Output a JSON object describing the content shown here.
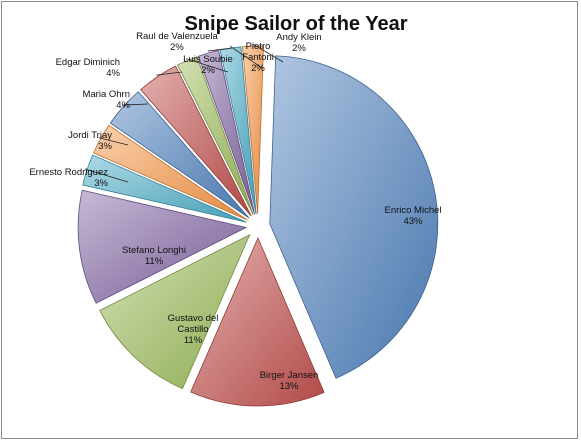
{
  "chart_data": {
    "type": "pie",
    "title": "Snipe Sailor of the Year",
    "slices": [
      {
        "label": "Enrico Michel",
        "value": 43,
        "pct_label": "43%",
        "color": "#4f81bd"
      },
      {
        "label": "Birger Jansen",
        "value": 13,
        "pct_label": "13%",
        "color": "#c0504d"
      },
      {
        "label": "Gustavo del Castillo",
        "value": 11,
        "pct_label": "11%",
        "color": "#9bbb59"
      },
      {
        "label": "Stefano Longhi",
        "value": 11,
        "pct_label": "11%",
        "color": "#8064a2"
      },
      {
        "label": "Ernesto Rodriguez",
        "value": 3,
        "pct_label": "3%",
        "color": "#4bacc6"
      },
      {
        "label": "Jordi Triay",
        "value": 3,
        "pct_label": "3%",
        "color": "#f79646"
      },
      {
        "label": "Maria Ohrn",
        "value": 4,
        "pct_label": "4%",
        "color": "#4f81bd"
      },
      {
        "label": "Edgar Diminich",
        "value": 4,
        "pct_label": "4%",
        "color": "#c0504d"
      },
      {
        "label": "Luis Soubie",
        "value": 2,
        "pct_label": "2%",
        "color": "#9bbb59"
      },
      {
        "label": "Raul de Valenzuela",
        "value": 2,
        "pct_label": "2%",
        "color": "#8064a2"
      },
      {
        "label": "Pietro Fantoni",
        "value": 2,
        "pct_label": "2%",
        "color": "#4bacc6"
      },
      {
        "label": "Andy Klein",
        "value": 2,
        "pct_label": "2%",
        "color": "#f79646"
      }
    ],
    "exploded": true,
    "data_labels": true
  }
}
